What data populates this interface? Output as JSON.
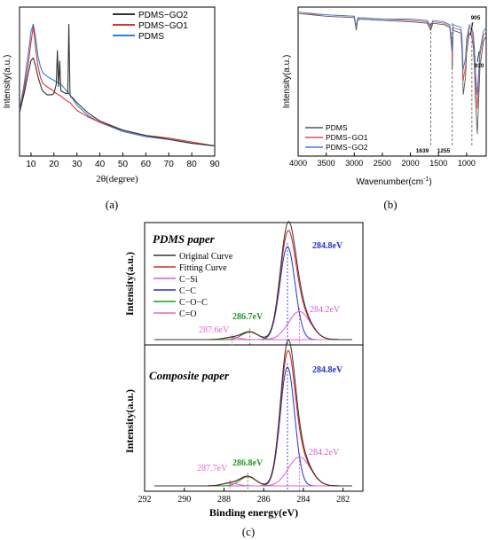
{
  "chart_data": [
    {
      "panel": "(a)",
      "type": "line",
      "xlabel": "2θ(degree)",
      "ylabel": "Intensity(a.u.)",
      "xlim": [
        5,
        90
      ],
      "xticks": [
        "10",
        "20",
        "30",
        "40",
        "50",
        "60",
        "70",
        "80",
        "90"
      ],
      "legend": [
        "PDMS−GO2",
        "PDMS−GO1",
        "PDMS"
      ],
      "series": [
        {
          "name": "PDMS−GO2",
          "color": "#333333",
          "x": [
            5,
            7,
            9,
            10,
            11,
            12,
            13,
            14,
            15,
            17,
            19,
            20,
            21,
            21.5,
            22,
            22.5,
            23,
            25,
            26,
            26.5,
            27,
            27.5,
            28,
            30,
            35,
            40,
            50,
            60,
            70,
            80,
            90
          ],
          "y": [
            0.3,
            0.45,
            0.62,
            0.7,
            0.72,
            0.66,
            0.58,
            0.52,
            0.47,
            0.44,
            0.44,
            0.45,
            0.52,
            0.78,
            0.5,
            0.7,
            0.47,
            0.45,
            0.45,
            0.98,
            0.44,
            0.42,
            0.42,
            0.38,
            0.3,
            0.24,
            0.17,
            0.13,
            0.1,
            0.07,
            0.05
          ]
        },
        {
          "name": "PDMS−GO1",
          "color": "#e03030",
          "x": [
            5,
            7,
            9,
            10,
            11,
            12,
            13,
            14,
            15,
            17,
            19,
            21,
            23,
            25,
            27,
            30,
            35,
            40,
            50,
            60,
            65,
            70,
            80,
            90
          ],
          "y": [
            0.3,
            0.48,
            0.7,
            0.84,
            0.96,
            0.8,
            0.66,
            0.58,
            0.53,
            0.5,
            0.48,
            0.45,
            0.43,
            0.4,
            0.38,
            0.32,
            0.27,
            0.23,
            0.17,
            0.13,
            0.12,
            0.11,
            0.08,
            0.05
          ]
        },
        {
          "name": "PDMS",
          "color": "#2f7fd8",
          "x": [
            5,
            7,
            9,
            10,
            11,
            12,
            13,
            14,
            15,
            17,
            19,
            21,
            23,
            25,
            27,
            30,
            35,
            40,
            50,
            60,
            70,
            80,
            90
          ],
          "y": [
            0.32,
            0.52,
            0.78,
            0.92,
            0.98,
            0.88,
            0.74,
            0.66,
            0.61,
            0.58,
            0.56,
            0.54,
            0.52,
            0.48,
            0.44,
            0.36,
            0.28,
            0.23,
            0.16,
            0.12,
            0.1,
            0.07,
            0.05
          ]
        }
      ]
    },
    {
      "panel": "(b)",
      "type": "line",
      "xlabel": "Wavenumber(cm",
      "xlabel_sup": "-1",
      "xlabel_end": ")",
      "ylabel": "Intensity(a.u.)",
      "xlim": [
        4000,
        650
      ],
      "xticks": [
        "4000",
        "3500",
        "3000",
        "2500",
        "2000",
        "1500",
        "1000"
      ],
      "legend": [
        "PDMS",
        "PDMS−GO1",
        "PDMS−GO2"
      ],
      "annotations": [
        "1639",
        "1255",
        "905",
        "910"
      ],
      "series": [
        {
          "name": "PDMS",
          "color": "#555555",
          "x": [
            4000,
            3500,
            3000,
            2965,
            2940,
            2900,
            2500,
            2000,
            1700,
            1639,
            1600,
            1400,
            1300,
            1260,
            1255,
            1240,
            1100,
            1080,
            1060,
            1020,
            1000,
            950,
            910,
            880,
            860,
            840,
            810,
            790,
            760,
            700,
            650
          ],
          "y": [
            0.98,
            0.96,
            0.95,
            0.86,
            0.93,
            0.94,
            0.93,
            0.92,
            0.91,
            0.86,
            0.91,
            0.9,
            0.88,
            0.7,
            0.58,
            0.86,
            0.84,
            0.7,
            0.4,
            0.52,
            0.7,
            0.84,
            0.82,
            0.75,
            0.6,
            0.35,
            0.12,
            0.3,
            0.6,
            0.78,
            0.82
          ]
        },
        {
          "name": "PDMS−GO1",
          "color": "#e05050",
          "x": [
            4000,
            3500,
            3000,
            2965,
            2940,
            2900,
            2500,
            2000,
            1700,
            1639,
            1600,
            1400,
            1300,
            1260,
            1255,
            1240,
            1100,
            1080,
            1060,
            1020,
            1000,
            950,
            910,
            880,
            860,
            840,
            810,
            790,
            760,
            700,
            650
          ],
          "y": [
            0.98,
            0.97,
            0.96,
            0.88,
            0.94,
            0.95,
            0.94,
            0.93,
            0.92,
            0.88,
            0.92,
            0.91,
            0.89,
            0.74,
            0.64,
            0.88,
            0.86,
            0.76,
            0.5,
            0.6,
            0.76,
            0.88,
            0.86,
            0.8,
            0.68,
            0.48,
            0.3,
            0.44,
            0.68,
            0.82,
            0.85
          ]
        },
        {
          "name": "PDMS−GO2",
          "color": "#3a80d0",
          "x": [
            4000,
            3500,
            3000,
            2965,
            2940,
            2900,
            2500,
            2000,
            1700,
            1639,
            1600,
            1400,
            1300,
            1260,
            1255,
            1240,
            1100,
            1080,
            1060,
            1020,
            1000,
            950,
            910,
            880,
            860,
            840,
            810,
            790,
            760,
            700,
            650
          ],
          "y": [
            0.99,
            0.97,
            0.96,
            0.89,
            0.95,
            0.95,
            0.94,
            0.94,
            0.93,
            0.89,
            0.93,
            0.92,
            0.9,
            0.78,
            0.7,
            0.9,
            0.88,
            0.8,
            0.58,
            0.66,
            0.8,
            0.9,
            0.88,
            0.84,
            0.74,
            0.56,
            0.4,
            0.52,
            0.72,
            0.85,
            0.88
          ]
        }
      ]
    },
    {
      "panel": "(c)",
      "type": "line",
      "xlabel": "Binding energy(eV)",
      "ylabel": "Intensity(a.u.)",
      "xlim": [
        292,
        281
      ],
      "xticks": [
        "292",
        "290",
        "288",
        "286",
        "284",
        "282"
      ],
      "legend": [
        {
          "name": "Original Curve",
          "color": "#333333"
        },
        {
          "name": "Fitting Curve",
          "color": "#dd2222"
        },
        {
          "name": "C−Si",
          "color": "#d65cd6"
        },
        {
          "name": "C−C",
          "color": "#2233cc"
        },
        {
          "name": "C−O−C",
          "color": "#229922"
        },
        {
          "name": "C=O",
          "color": "#e066c8"
        }
      ],
      "subpanels": [
        {
          "title": "PDMS paper",
          "peaks": [
            {
              "center": 284.8,
              "height": 0.86,
              "width": 0.38,
              "color": "#2233cc"
            },
            {
              "center": 284.2,
              "height": 0.26,
              "width": 0.55,
              "color": "#d65cd6"
            },
            {
              "center": 286.7,
              "height": 0.07,
              "width": 0.4,
              "color": "#229922"
            },
            {
              "center": 287.6,
              "height": 0.02,
              "width": 0.4,
              "color": "#e066c8"
            }
          ],
          "labels": [
            "284.8eV",
            "284.2eV",
            "286.7eV",
            "287.6eV"
          ]
        },
        {
          "title": "Composite paper",
          "peaks": [
            {
              "center": 284.8,
              "height": 0.9,
              "width": 0.36,
              "color": "#2233cc"
            },
            {
              "center": 284.2,
              "height": 0.22,
              "width": 0.55,
              "color": "#d65cd6"
            },
            {
              "center": 286.8,
              "height": 0.07,
              "width": 0.4,
              "color": "#229922"
            },
            {
              "center": 287.7,
              "height": 0.02,
              "width": 0.4,
              "color": "#e066c8"
            }
          ],
          "labels": [
            "284.8eV",
            "284.2eV",
            "286.8eV",
            "287.7eV"
          ]
        }
      ]
    }
  ],
  "captions": {
    "a": "(a)",
    "b": "(b)",
    "c": "(c)"
  }
}
